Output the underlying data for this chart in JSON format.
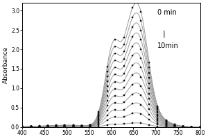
{
  "xlabel": "",
  "ylabel": "Absorbance",
  "xlim": [
    400,
    800
  ],
  "ylim": [
    0.0,
    3.2
  ],
  "xticks": [
    400,
    450,
    500,
    550,
    600,
    650,
    700,
    750,
    800
  ],
  "yticks": [
    0.0,
    0.5,
    1.0,
    1.5,
    2.0,
    2.5,
    3.0
  ],
  "annotation_text_0min": "0 min",
  "annotation_text_10min": "10min",
  "line_color": "#999999",
  "marker": "s",
  "marker_color": "#111111",
  "marker_size": 1.8,
  "background_color": "#ffffff",
  "n_curves": 13,
  "main_peak_x": 660,
  "main_peak_sigma": 22,
  "secondary_peak_x": 605,
  "secondary_peak_sigma": 18,
  "shoulder_x": 635,
  "shoulder_sigma": 12
}
